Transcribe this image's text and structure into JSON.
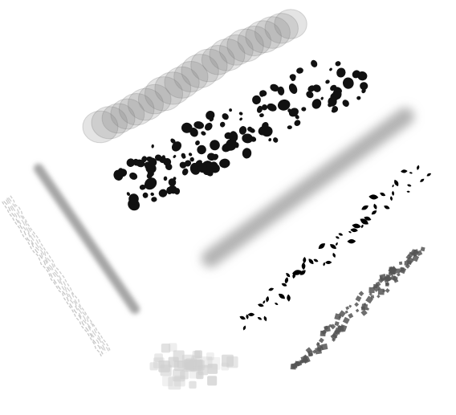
{
  "canvas": {
    "background": "#ffffff"
  },
  "strokes": [
    {
      "name": "overlapping-circles-brush-stroke",
      "brush": "soft-circle-stamp",
      "color": "#7a7a7a"
    },
    {
      "name": "black-splatter-brush-stroke",
      "brush": "ink-splatter",
      "color": "#111111"
    },
    {
      "name": "soft-airbrush-stroke",
      "brush": "airbrush",
      "color": "#9a9a9a"
    },
    {
      "name": "gray-round-marker-stroke",
      "brush": "soft-round-marker",
      "color": "#9c9c9c"
    },
    {
      "name": "pencil-texture-stroke",
      "brush": "pencil",
      "color": "#b5b5b5"
    },
    {
      "name": "black-leaf-scatter-stroke",
      "brush": "leaf-scatter",
      "color": "#000000"
    },
    {
      "name": "gray-leaf-cluster-stroke",
      "brush": "leaf-cluster",
      "color": "#555555"
    },
    {
      "name": "square-pixel-scatter-stroke",
      "brush": "square-scatter",
      "color": "#cfcfcf"
    }
  ]
}
